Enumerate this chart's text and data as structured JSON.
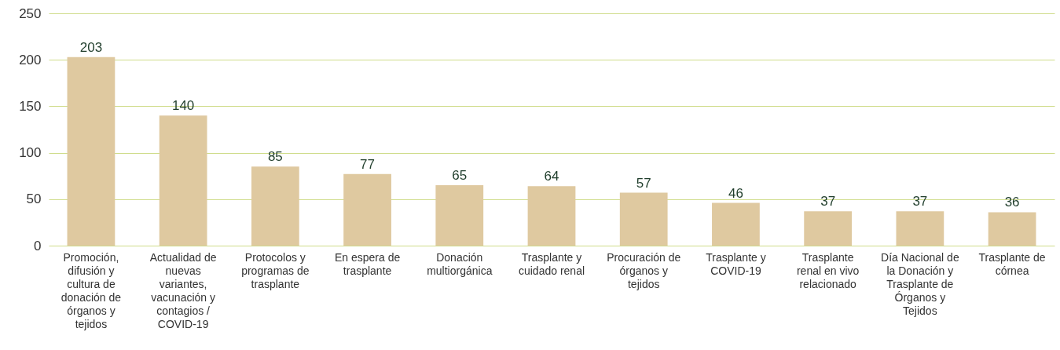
{
  "chart_data": {
    "type": "bar",
    "categories": [
      "Promoción, difusión y cultura de donación de órganos y tejidos",
      "Actualidad de nuevas variantes, vacunación y contagios / COVID-19",
      "Protocolos y programas de trasplante",
      "En espera de trasplante",
      "Donación multiorgánica",
      "Trasplante y cuidado renal",
      "Procuración de órganos y tejidos",
      "Trasplante y COVID-19",
      "Trasplante renal en vivo relacionado",
      "Día Nacional de la Donación y Trasplante de Órganos y Tejidos",
      "Trasplante de córnea"
    ],
    "values": [
      203,
      140,
      85,
      77,
      65,
      64,
      57,
      46,
      37,
      37,
      36
    ],
    "color": "#dfc9a0",
    "ylim": [
      0,
      250
    ],
    "yticks": [
      0,
      50,
      100,
      150,
      200,
      250
    ],
    "grid": "y",
    "data_labels": true
  }
}
